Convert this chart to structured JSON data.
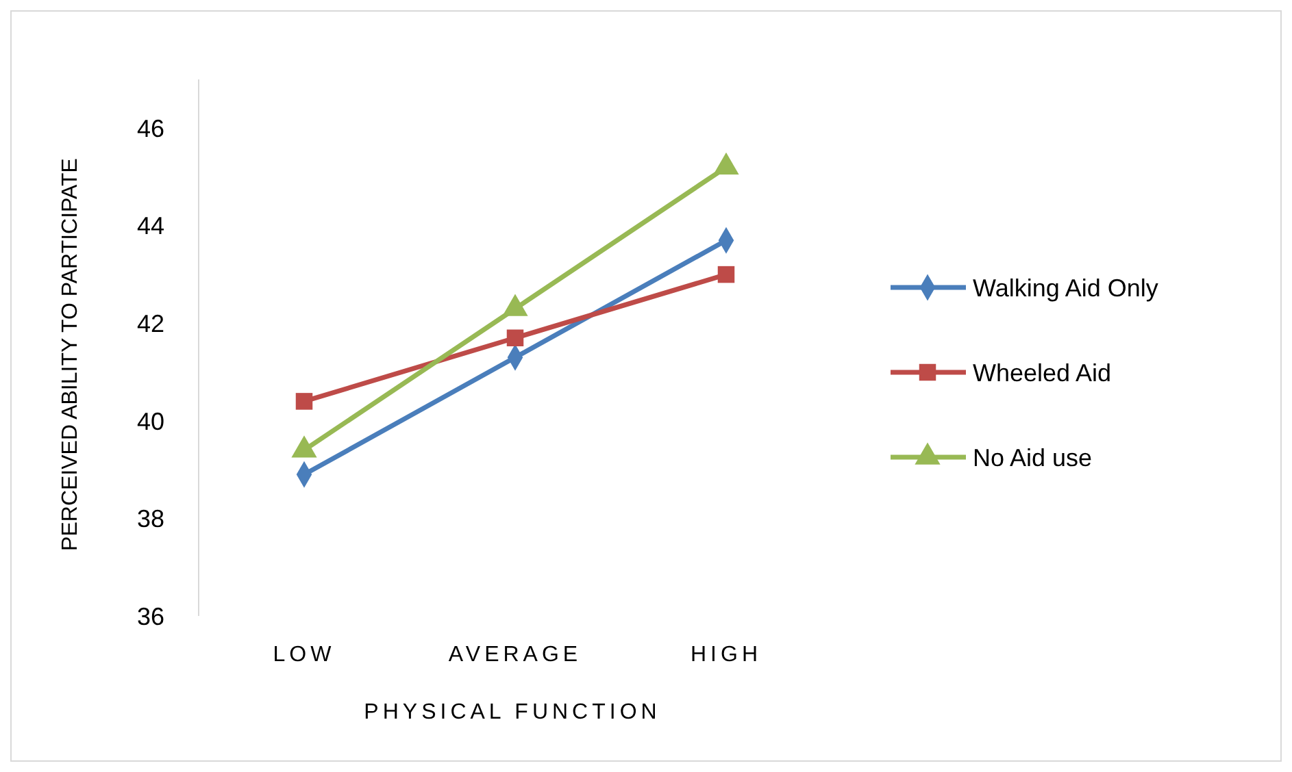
{
  "chart_data": {
    "type": "line",
    "xlabel": "PHYSICAL FUNCTION",
    "ylabel": "PERCEIVED ABILITY TO PARTICIPATE",
    "categories": [
      "LOW",
      "AVERAGE",
      "HIGH"
    ],
    "series": [
      {
        "name": "Walking Aid Only",
        "color": "#4a7ebb",
        "marker": "diamond",
        "values": [
          38.9,
          41.3,
          43.7
        ]
      },
      {
        "name": "Wheeled Aid",
        "color": "#be4b48",
        "marker": "square",
        "values": [
          40.4,
          41.7,
          43.0
        ]
      },
      {
        "name": "No Aid use",
        "color": "#98b954",
        "marker": "triangle",
        "values": [
          39.4,
          42.3,
          45.2
        ]
      }
    ],
    "ylim": [
      36,
      47
    ],
    "yticks": [
      36,
      38,
      40,
      42,
      44,
      46
    ],
    "grid": false,
    "legend": "right"
  }
}
